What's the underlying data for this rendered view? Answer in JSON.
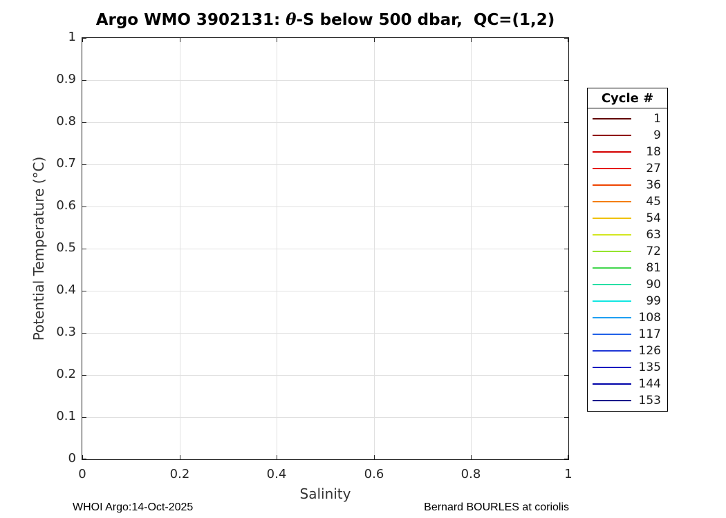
{
  "title": {
    "prefix": "Argo WMO 3902131: ",
    "theta": "θ",
    "suffix": "-S below 500 dbar,  QC=(1,2)"
  },
  "footer": {
    "left": "WHOI Argo:14-Oct-2025",
    "right": "Bernard BOURLES at coriolis"
  },
  "chart_data": {
    "type": "line",
    "title": "Argo WMO 3902131: θ-S below 500 dbar,  QC=(1,2)",
    "xlabel": "Salinity",
    "ylabel": "Potential Temperature (°C)",
    "xlim": [
      0,
      1
    ],
    "ylim": [
      0,
      1
    ],
    "x_ticks": [
      0,
      0.2,
      0.4,
      0.6,
      0.8,
      1
    ],
    "y_ticks": [
      0,
      0.1,
      0.2,
      0.3,
      0.4,
      0.5,
      0.6,
      0.7,
      0.8,
      0.9,
      1
    ],
    "grid": true,
    "legend": {
      "title": "Cycle #",
      "position": "right-outside"
    },
    "series": [
      {
        "name": "1",
        "color": "#600000",
        "values": []
      },
      {
        "name": "9",
        "color": "#8f0000",
        "values": []
      },
      {
        "name": "18",
        "color": "#d40000",
        "values": []
      },
      {
        "name": "27",
        "color": "#e51a00",
        "values": []
      },
      {
        "name": "36",
        "color": "#ee4400",
        "values": []
      },
      {
        "name": "45",
        "color": "#f47e00",
        "values": []
      },
      {
        "name": "54",
        "color": "#efc100",
        "values": []
      },
      {
        "name": "63",
        "color": "#d3e621",
        "values": []
      },
      {
        "name": "72",
        "color": "#95e42e",
        "values": []
      },
      {
        "name": "81",
        "color": "#43d64e",
        "values": []
      },
      {
        "name": "90",
        "color": "#28dfa5",
        "values": []
      },
      {
        "name": "99",
        "color": "#12e7e2",
        "values": []
      },
      {
        "name": "108",
        "color": "#1e9ff2",
        "values": []
      },
      {
        "name": "117",
        "color": "#2161e8",
        "values": []
      },
      {
        "name": "126",
        "color": "#1f36d6",
        "values": []
      },
      {
        "name": "135",
        "color": "#0b12c0",
        "values": []
      },
      {
        "name": "144",
        "color": "#0002a8",
        "values": []
      },
      {
        "name": "153",
        "color": "#00008b",
        "values": []
      }
    ]
  }
}
